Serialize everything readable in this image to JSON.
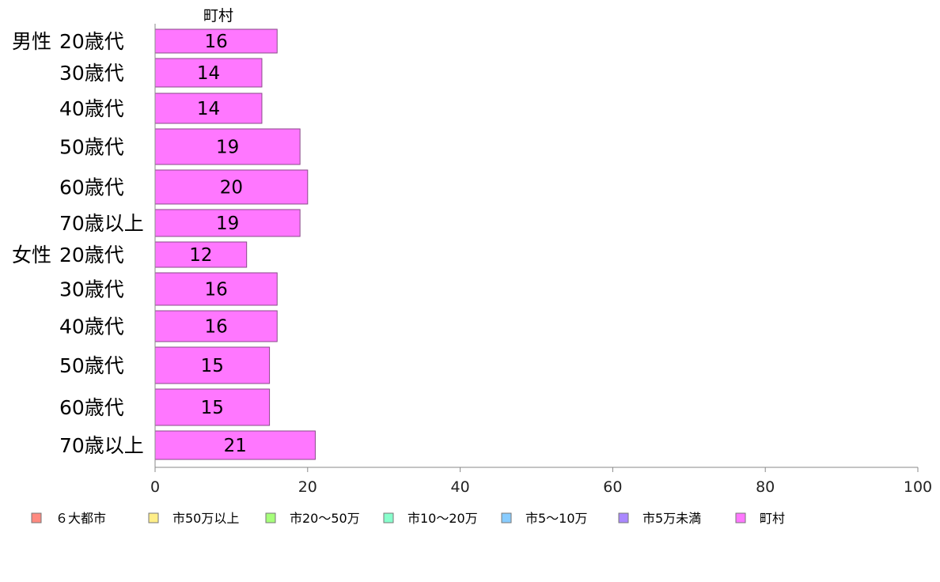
{
  "chart_data": {
    "type": "bar",
    "orientation": "horizontal",
    "series_title": "町村",
    "groups": [
      {
        "label": "男性",
        "start": 0
      },
      {
        "label": "女性",
        "start": 6
      }
    ],
    "categories": [
      "20歳代",
      "30歳代",
      "40歳代",
      "50歳代",
      "60歳代",
      "70歳以上",
      "20歳代",
      "30歳代",
      "40歳代",
      "50歳代",
      "60歳代",
      "70歳以上"
    ],
    "series": [
      {
        "name": "町村",
        "color": "#ff77ff",
        "values": [
          16,
          14,
          14,
          19,
          20,
          19,
          12,
          16,
          16,
          15,
          15,
          21
        ]
      }
    ],
    "value_labels": [
      "16",
      "14",
      "14",
      "19",
      "20",
      "19",
      "12",
      "16",
      "16",
      "15",
      "15",
      "21"
    ],
    "xlim": [
      0,
      100
    ],
    "xticks": [
      0,
      20,
      40,
      60,
      80,
      100
    ],
    "legend": {
      "position": "bottom",
      "entries": [
        {
          "label": "６大都市",
          "color": "#ff8a80"
        },
        {
          "label": "市50万以上",
          "color": "#ffee88"
        },
        {
          "label": "市20〜50万",
          "color": "#a6ff7a"
        },
        {
          "label": "市10〜20万",
          "color": "#88ffcc"
        },
        {
          "label": "市5〜10万",
          "color": "#88ccff"
        },
        {
          "label": "市5万未満",
          "color": "#aa88ff"
        },
        {
          "label": "町村",
          "color": "#ff77ff"
        }
      ]
    },
    "grid": false
  }
}
